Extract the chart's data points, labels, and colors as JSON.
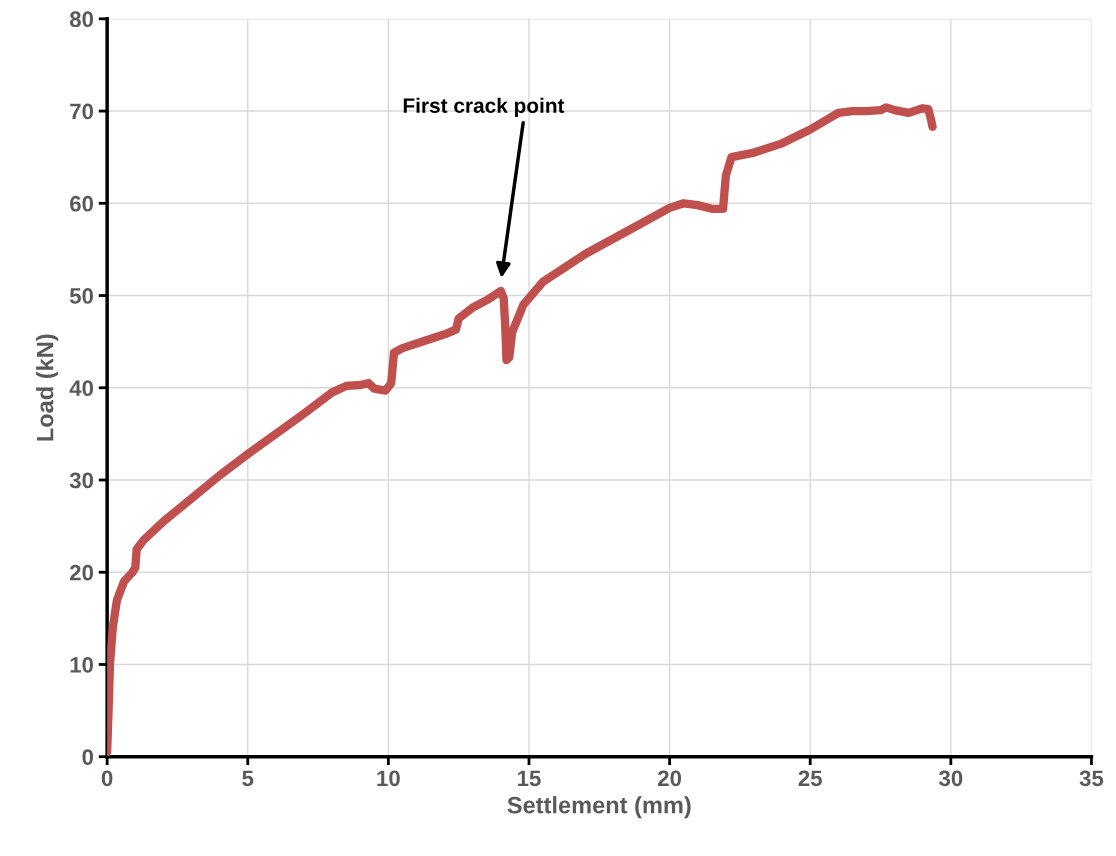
{
  "chart_data": {
    "type": "line",
    "xlabel": "Settlement (mm)",
    "ylabel": "Load (kN)",
    "xlim": [
      0,
      35
    ],
    "xticks": [
      0,
      5,
      10,
      15,
      20,
      25,
      30,
      35
    ],
    "ylim": [
      0,
      80
    ],
    "yticks": [
      0,
      10,
      20,
      30,
      40,
      50,
      60,
      70,
      80
    ],
    "grid": true,
    "marker": "none",
    "line_style": "solid",
    "annotations": [
      "First crack point"
    ],
    "series": [
      {
        "color": "#c0504d",
        "x": [
          0,
          0.05,
          0.1,
          0.2,
          0.35,
          0.6,
          0.9,
          1.0,
          1.05,
          1.3,
          2,
          3,
          4,
          5,
          6,
          7,
          8,
          8.5,
          9,
          9.3,
          9.5,
          9.9,
          10.1,
          10.2,
          10.5,
          11,
          12,
          12.4,
          12.5,
          13,
          13.5,
          14,
          14.1,
          14.15,
          14.2,
          14.3,
          14.4,
          14.8,
          15.5,
          17,
          18.5,
          20,
          20.5,
          21,
          21.5,
          21.9,
          22,
          22.2,
          23,
          24,
          25,
          26,
          26.5,
          27,
          27.5,
          27.7,
          28,
          28.5,
          29,
          29.2,
          29.3,
          29.35
        ],
        "values": [
          0.5,
          5,
          10,
          14,
          17,
          19,
          20,
          20.5,
          22.5,
          23.5,
          25.5,
          28,
          30.5,
          32.8,
          35,
          37.2,
          39.5,
          40.2,
          40.3,
          40.5,
          39.9,
          39.7,
          40.5,
          43.8,
          44.3,
          44.8,
          45.8,
          46.3,
          47.5,
          48.7,
          49.5,
          50.5,
          49.7,
          47,
          43,
          43.3,
          46,
          49,
          51.5,
          54.5,
          57,
          59.5,
          60,
          59.8,
          59.4,
          59.4,
          63,
          65,
          65.5,
          66.5,
          68,
          69.8,
          70,
          70,
          70.1,
          70.4,
          70.1,
          69.8,
          70.3,
          70.2,
          69,
          68.3
        ]
      }
    ]
  }
}
